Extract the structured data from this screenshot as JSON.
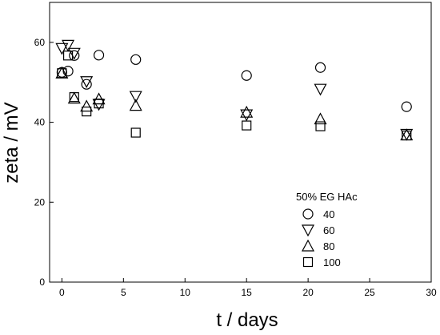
{
  "chart_data": {
    "type": "scatter",
    "title": "",
    "xlabel": "t / days",
    "ylabel": "zeta / mV",
    "xlim": [
      -1,
      30
    ],
    "ylim": [
      0,
      70
    ],
    "xticks": [
      0,
      5,
      10,
      15,
      20,
      25,
      30
    ],
    "yticks": [
      0,
      20,
      40,
      60
    ],
    "grid": false,
    "legend": {
      "title": "50% EG HAc",
      "placement": "lower-center-right",
      "entries": [
        "40",
        "60",
        "80",
        "100"
      ]
    },
    "series": [
      {
        "name": "40",
        "marker": "circle",
        "points": [
          {
            "x": 0.0,
            "y": 52.5
          },
          {
            "x": 0.5,
            "y": 52.8
          },
          {
            "x": 1.0,
            "y": 56.7
          },
          {
            "x": 2.0,
            "y": 49.5
          },
          {
            "x": 3.0,
            "y": 56.8
          },
          {
            "x": 6.0,
            "y": 55.7
          },
          {
            "x": 15.0,
            "y": 51.7
          },
          {
            "x": 21.0,
            "y": 53.7
          },
          {
            "x": 28.0,
            "y": 43.9
          }
        ]
      },
      {
        "name": "60",
        "marker": "triangle-down",
        "points": [
          {
            "x": 0.0,
            "y": 58.5
          },
          {
            "x": 0.5,
            "y": 59.3
          },
          {
            "x": 1.0,
            "y": 57.3
          },
          {
            "x": 2.0,
            "y": 50.2
          },
          {
            "x": 3.0,
            "y": 44.5
          },
          {
            "x": 6.0,
            "y": 46.5
          },
          {
            "x": 15.0,
            "y": 41.9
          },
          {
            "x": 21.0,
            "y": 48.3
          },
          {
            "x": 28.0,
            "y": 37.0
          }
        ]
      },
      {
        "name": "80",
        "marker": "triangle-up",
        "points": [
          {
            "x": 0.0,
            "y": 52.3
          },
          {
            "x": 1.0,
            "y": 46.0
          },
          {
            "x": 2.0,
            "y": 44.0
          },
          {
            "x": 3.0,
            "y": 45.8
          },
          {
            "x": 6.0,
            "y": 44.2
          },
          {
            "x": 15.0,
            "y": 42.5
          },
          {
            "x": 21.0,
            "y": 40.8
          },
          {
            "x": 28.0,
            "y": 36.8
          }
        ]
      },
      {
        "name": "100",
        "marker": "square",
        "points": [
          {
            "x": 0.0,
            "y": 52.3
          },
          {
            "x": 0.5,
            "y": 56.7
          },
          {
            "x": 1.0,
            "y": 46.3
          },
          {
            "x": 2.0,
            "y": 42.7
          },
          {
            "x": 3.0,
            "y": 44.7
          },
          {
            "x": 6.0,
            "y": 37.4
          },
          {
            "x": 15.0,
            "y": 39.2
          },
          {
            "x": 21.0,
            "y": 39.0
          },
          {
            "x": 28.0,
            "y": 36.7
          }
        ]
      }
    ]
  }
}
